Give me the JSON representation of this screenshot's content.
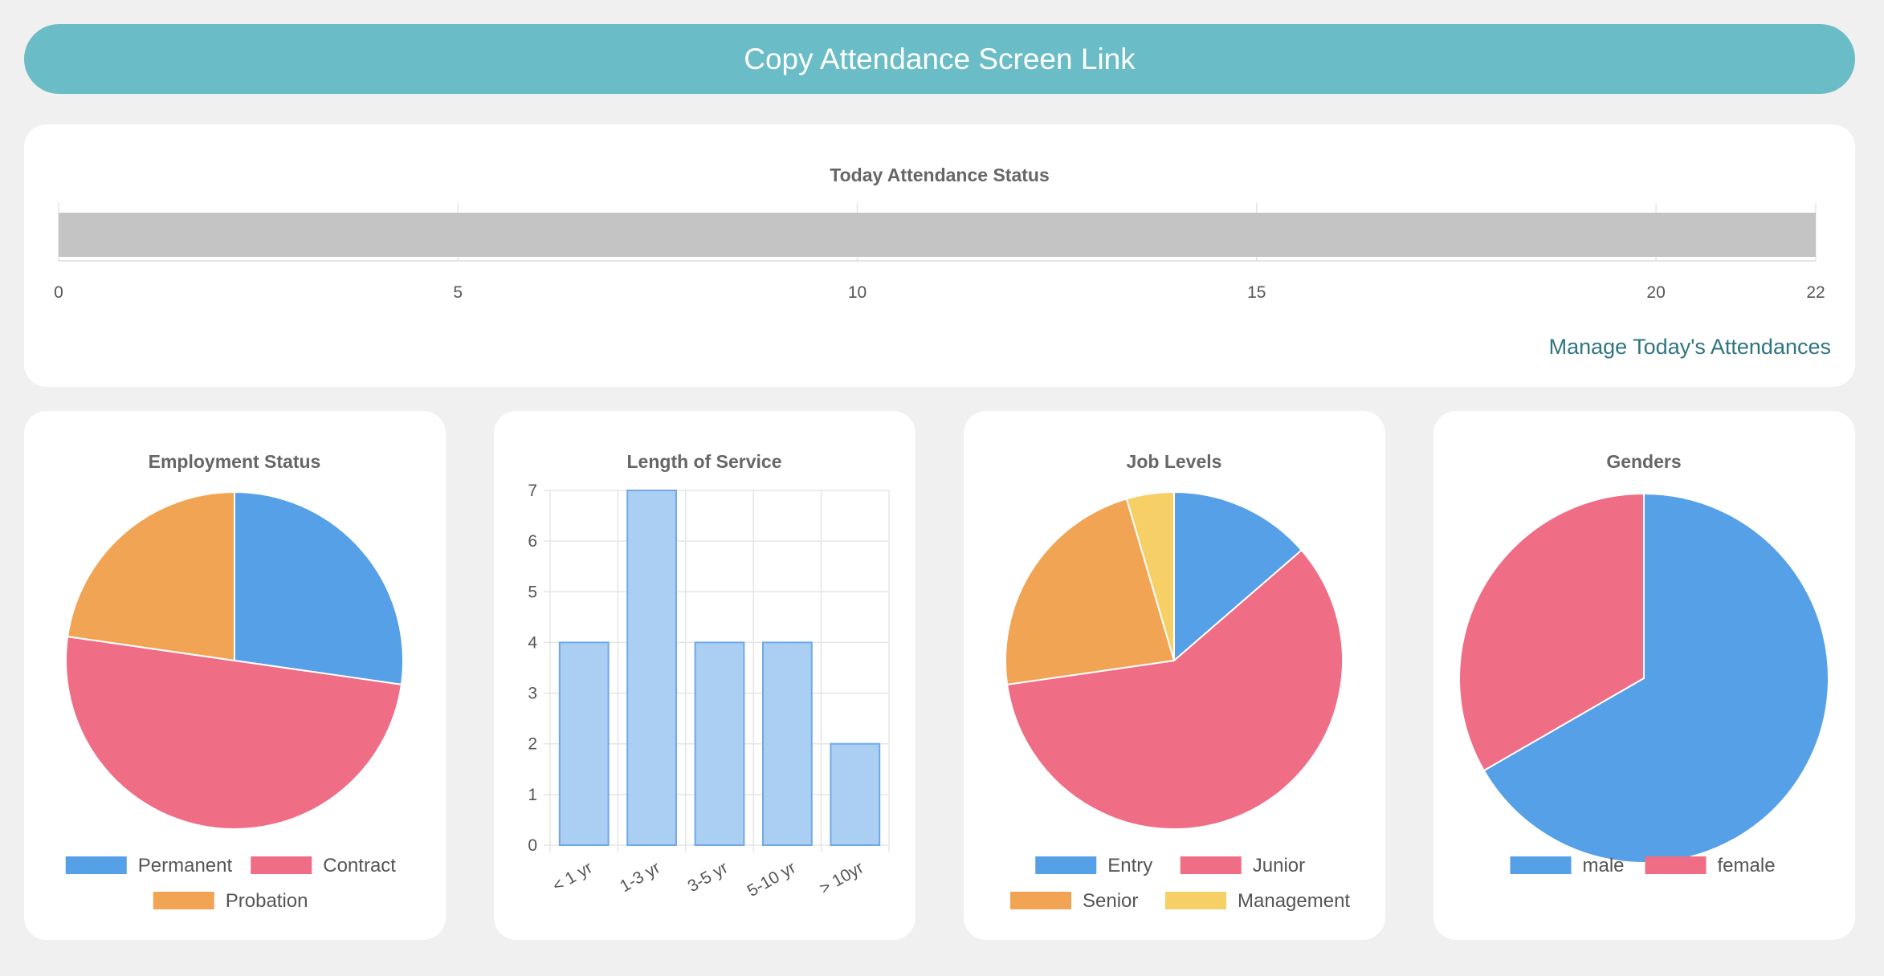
{
  "header": {
    "copy_link_label": "Copy Attendance Screen Link"
  },
  "attendance": {
    "title": "Today Attendance Status",
    "manage_link": "Manage Today's Attendances",
    "chart_data": {
      "type": "bar",
      "orientation": "horizontal",
      "title": "Today Attendance Status",
      "values": [
        22
      ],
      "xlim": [
        0,
        22
      ],
      "xticks": [
        "0",
        "5",
        "10",
        "15",
        "20",
        "22"
      ],
      "color": "#c4c4c4"
    }
  },
  "charts": {
    "employment": {
      "chart_data": {
        "type": "pie",
        "title": "Employment Status",
        "labels": [
          "Permanent",
          "Contract",
          "Probation"
        ],
        "values": [
          6,
          11,
          5
        ],
        "colors": [
          "#55a0e6",
          "#ef6d85",
          "#f2a455"
        ]
      }
    },
    "service": {
      "chart_data": {
        "type": "bar",
        "title": "Length of Service",
        "categories": [
          "< 1 yr",
          "1-3 yr",
          "3-5 yr",
          "5-10 yr",
          "> 10yr"
        ],
        "values": [
          4,
          7,
          4,
          4,
          2
        ],
        "ylim": [
          0,
          7
        ],
        "yticks": [
          "0",
          "1",
          "2",
          "3",
          "4",
          "5",
          "6",
          "7"
        ],
        "grid": true,
        "color": "#abcff3",
        "border_color": "#6ea9e6"
      }
    },
    "joblevels": {
      "chart_data": {
        "type": "pie",
        "title": "Job Levels",
        "labels": [
          "Entry",
          "Junior",
          "Senior",
          "Management"
        ],
        "values": [
          3,
          13,
          5,
          1
        ],
        "colors": [
          "#55a0e6",
          "#ef6d85",
          "#f2a455",
          "#f6cf67"
        ]
      }
    },
    "genders": {
      "chart_data": {
        "type": "pie",
        "title": "Genders",
        "labels": [
          "male",
          "female"
        ],
        "values": [
          2,
          1
        ],
        "colors": [
          "#55a0e6",
          "#ef6d85"
        ]
      }
    }
  }
}
